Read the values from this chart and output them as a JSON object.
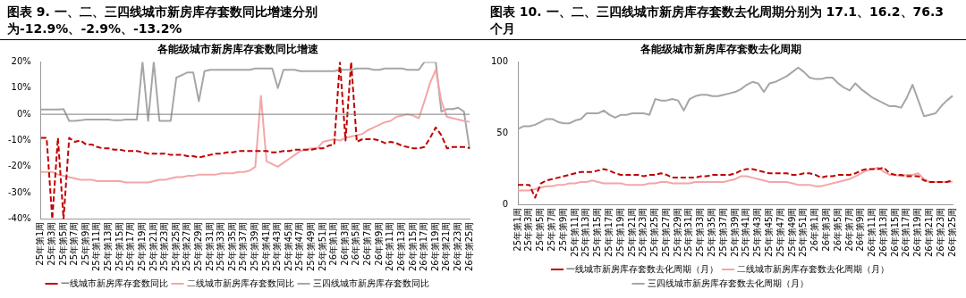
{
  "chart_data": [
    {
      "type": "line",
      "title": "图表 9. 一、二、三四线城市新房库存套数同比增速分别为-12.9%、-2.9%、-13.2%",
      "subtitle": "各能级城市新房库存套数同比增速",
      "categories": [
        "25年第1周",
        null,
        "25年第3周",
        null,
        "25年第5周",
        null,
        "25年第7周",
        null,
        "25年第9周",
        null,
        "25年第11周",
        null,
        "25年第13周",
        null,
        "25年第15周",
        null,
        "25年第17周",
        null,
        "25年第19周",
        null,
        "25年第21周",
        null,
        "25年第23周",
        null,
        "25年第25周",
        null,
        "25年第27周",
        null,
        "25年第29周",
        null,
        "25年第31周",
        null,
        "25年第33周",
        null,
        "25年第35周",
        null,
        "25年第37周",
        null,
        "25年第39周",
        null,
        "25年第41周",
        null,
        "25年第43周",
        null,
        "25年第45周",
        null,
        "25年第47周",
        null,
        "25年第49周",
        null,
        "25年第51周",
        null,
        "26年第1周",
        null,
        "26年第3周",
        null,
        "26年第5周",
        null,
        "26年第7周",
        null,
        "26年第9周",
        null,
        "26年第11周",
        null,
        "26年第13周",
        null,
        "26年第15周",
        null,
        "26年第17周",
        null,
        "26年第19周",
        null,
        "26年第21周",
        null,
        "26年第23周",
        null,
        "26年第25周"
      ],
      "series": [
        {
          "name": "一线城市新房库存套数同比",
          "color": "#c00000",
          "line_style": "dashed",
          "values": [
            -9,
            -9,
            -40,
            -9,
            -40,
            -9,
            -10.5,
            -10,
            -11.5,
            -11.5,
            -12.5,
            -13,
            -13,
            -13.5,
            -13.5,
            -14,
            -14,
            -14,
            -14.5,
            -15,
            -15,
            -15,
            -15,
            -15.5,
            -15.5,
            -15.5,
            -16,
            -16,
            -16.5,
            -16,
            -15.5,
            -15,
            -15,
            -14.5,
            -14.5,
            -14,
            -14,
            -14,
            -14,
            -14,
            -14,
            -14.5,
            -14.5,
            -14,
            -14,
            -13.5,
            -13.5,
            -13.5,
            -13.5,
            -13,
            -13,
            -12,
            -11.5,
            20,
            -10,
            20,
            -10.5,
            -9.5,
            -9.5,
            -9.5,
            -10,
            -11,
            -10.5,
            -11,
            -12,
            -12.5,
            -13,
            -13,
            -12.5,
            -9,
            -5,
            -8,
            -13,
            -12.5,
            -12.5,
            -12.5,
            -12.9
          ]
        },
        {
          "name": "二线城市新房库存套数同比",
          "color": "#f4a6a6",
          "line_style": "solid",
          "values": [
            -22,
            -22,
            -22,
            -23,
            -23.5,
            -24,
            -24.5,
            -25,
            -25,
            -25,
            -25.5,
            -25.5,
            -25.5,
            -25.5,
            -25.5,
            -26,
            -26,
            -26,
            -26,
            -26,
            -25.5,
            -25,
            -25,
            -24.5,
            -24,
            -24,
            -23.5,
            -23.5,
            -23,
            -23,
            -23,
            -23,
            -22.5,
            -22.5,
            -22.5,
            -22,
            -22,
            -21.5,
            -20,
            7,
            -18,
            -19,
            -20,
            -18.5,
            -17,
            -15.5,
            -14,
            -13.5,
            -13,
            -13,
            -10.5,
            -10,
            -9.5,
            -10,
            -9,
            -8.5,
            -8,
            -7.5,
            -6,
            -5,
            -4,
            -3,
            -2.5,
            -1,
            -0.5,
            0,
            -0.5,
            -1.5,
            5,
            12,
            17,
            5,
            -1,
            -1.5,
            -2,
            -2.5,
            -2.9
          ]
        },
        {
          "name": "三四线城市新房库存套数同比",
          "color": "#a6a6a6",
          "line_style": "solid",
          "values": [
            1.8,
            1.8,
            1.8,
            1.8,
            2,
            -2.5,
            -2.5,
            -2.3,
            -2,
            -2,
            -2,
            -2,
            -2,
            -2.3,
            -2.3,
            -2,
            -2,
            -2,
            20,
            -2.5,
            20,
            -2.5,
            -2.5,
            -2.5,
            14,
            15,
            16,
            16,
            5,
            16.5,
            17,
            17,
            17,
            17,
            17,
            17,
            17,
            17,
            17.5,
            17.5,
            17.5,
            17.5,
            10,
            17,
            17,
            17,
            16.5,
            16.5,
            16.5,
            16.5,
            16.5,
            16.5,
            16.5,
            17,
            17,
            17,
            17.5,
            17.5,
            17.5,
            17,
            17,
            17.5,
            17.5,
            17.5,
            17.5,
            17,
            17,
            17,
            20,
            20,
            20,
            1,
            2,
            2,
            2.5,
            1,
            -13.2
          ]
        }
      ],
      "ylim": [
        -40,
        20
      ],
      "yticks": [
        {
          "value": -40,
          "label": "-40%"
        },
        {
          "value": -30,
          "label": "-30%"
        },
        {
          "value": -20,
          "label": "-20%"
        },
        {
          "value": -10,
          "label": "-10%"
        },
        {
          "value": 0,
          "label": "0%"
        },
        {
          "value": 10,
          "label": "10%"
        },
        {
          "value": 20,
          "label": "20%"
        }
      ],
      "ref_lines": [
        {
          "axis": "y",
          "value": 0,
          "color": "#7f7f7f"
        }
      ],
      "grid": false,
      "legend": "bottom",
      "marker": "none"
    },
    {
      "type": "line",
      "title": "图表 10. 一、二、三四线城市新房库存套数去化周期分别为 17.1、16.2、76.3 个月",
      "subtitle": "各能级城市新房库存套数去化周期",
      "categories": [
        "25年第1周",
        null,
        "25年第3周",
        null,
        "25年第5周",
        null,
        "25年第7周",
        null,
        "25年第9周",
        null,
        "25年第11周",
        null,
        "25年第13周",
        null,
        "25年第15周",
        null,
        "25年第17周",
        null,
        "25年第19周",
        null,
        "25年第21周",
        null,
        "25年第23周",
        null,
        "25年第25周",
        null,
        "25年第27周",
        null,
        "25年第29周",
        null,
        "25年第31周",
        null,
        "25年第33周",
        null,
        "25年第35周",
        null,
        "25年第37周",
        null,
        "25年第39周",
        null,
        "25年第41周",
        null,
        "25年第43周",
        null,
        "25年第45周",
        null,
        "25年第47周",
        null,
        "25年第49周",
        null,
        "25年第51周",
        null,
        "26年第1周",
        null,
        "26年第3周",
        null,
        "26年第5周",
        null,
        "26年第7周",
        null,
        "26年第9周",
        null,
        "26年第11周",
        null,
        "26年第13周",
        null,
        "26年第15周",
        null,
        "26年第17周",
        null,
        "26年第19周",
        null,
        "26年第21周",
        null,
        "26年第23周",
        null,
        "26年第25周"
      ],
      "series": [
        {
          "name": "一线城市新房库存套数去化周期（月）",
          "color": "#c00000",
          "line_style": "dashed",
          "values": [
            14,
            14,
            14,
            5,
            15,
            17,
            18,
            19,
            20,
            21,
            22,
            23,
            23,
            23,
            24,
            25,
            24,
            22,
            21,
            21,
            21,
            21,
            20,
            21,
            21,
            22,
            21,
            19,
            19,
            19,
            19,
            19,
            20,
            20,
            21,
            21,
            21,
            21,
            22,
            24,
            25,
            25,
            24,
            23,
            22,
            22,
            22,
            22,
            21,
            21,
            22,
            22,
            21,
            19,
            20,
            20,
            21,
            21,
            21,
            22,
            24,
            25,
            25,
            25,
            26,
            22,
            21,
            21,
            20,
            20,
            20,
            17,
            16,
            16,
            16,
            16,
            17.1
          ]
        },
        {
          "name": "二线城市新房库存套数去化周期（月）",
          "color": "#f4a6a6",
          "line_style": "solid",
          "values": [
            10,
            10,
            10,
            11,
            12,
            13,
            13,
            14,
            14,
            15,
            15,
            16,
            16,
            17,
            16,
            15,
            15,
            15,
            15,
            14,
            14,
            14,
            14,
            15,
            15,
            16,
            16,
            15,
            15,
            15,
            15,
            16,
            16,
            16,
            16,
            16,
            16,
            17,
            18,
            20,
            20,
            19,
            18,
            17,
            16,
            16,
            16,
            16,
            15,
            14,
            14,
            14,
            13,
            13,
            14,
            15,
            16,
            17,
            18,
            20,
            22,
            24,
            25,
            26,
            23,
            21,
            21,
            20,
            21,
            21,
            22,
            18,
            16,
            16,
            16,
            16,
            16.2
          ]
        },
        {
          "name": "三四线城市新房库存套数去化周期（月）",
          "color": "#a6a6a6",
          "line_style": "solid",
          "values": [
            53,
            55,
            55,
            56,
            58,
            60,
            60,
            58,
            57,
            57,
            59,
            60,
            64,
            64,
            64,
            66,
            63,
            61,
            63,
            63,
            64,
            64,
            64,
            63,
            74,
            73,
            73,
            74,
            73,
            66,
            74,
            76,
            77,
            77,
            76,
            76,
            77,
            78,
            79,
            81,
            84,
            86,
            85,
            79,
            85,
            86,
            88,
            90,
            93,
            96,
            93,
            89,
            88,
            88,
            89,
            89,
            85,
            82,
            80,
            85,
            81,
            78,
            75,
            73,
            71,
            69,
            69,
            68,
            75,
            84,
            73,
            62,
            63,
            64,
            69,
            73,
            76.3
          ]
        }
      ],
      "ylim": [
        0,
        100
      ],
      "yticks": [
        0,
        50,
        100
      ],
      "grid": false,
      "legend": "bottom",
      "marker": "none"
    }
  ]
}
